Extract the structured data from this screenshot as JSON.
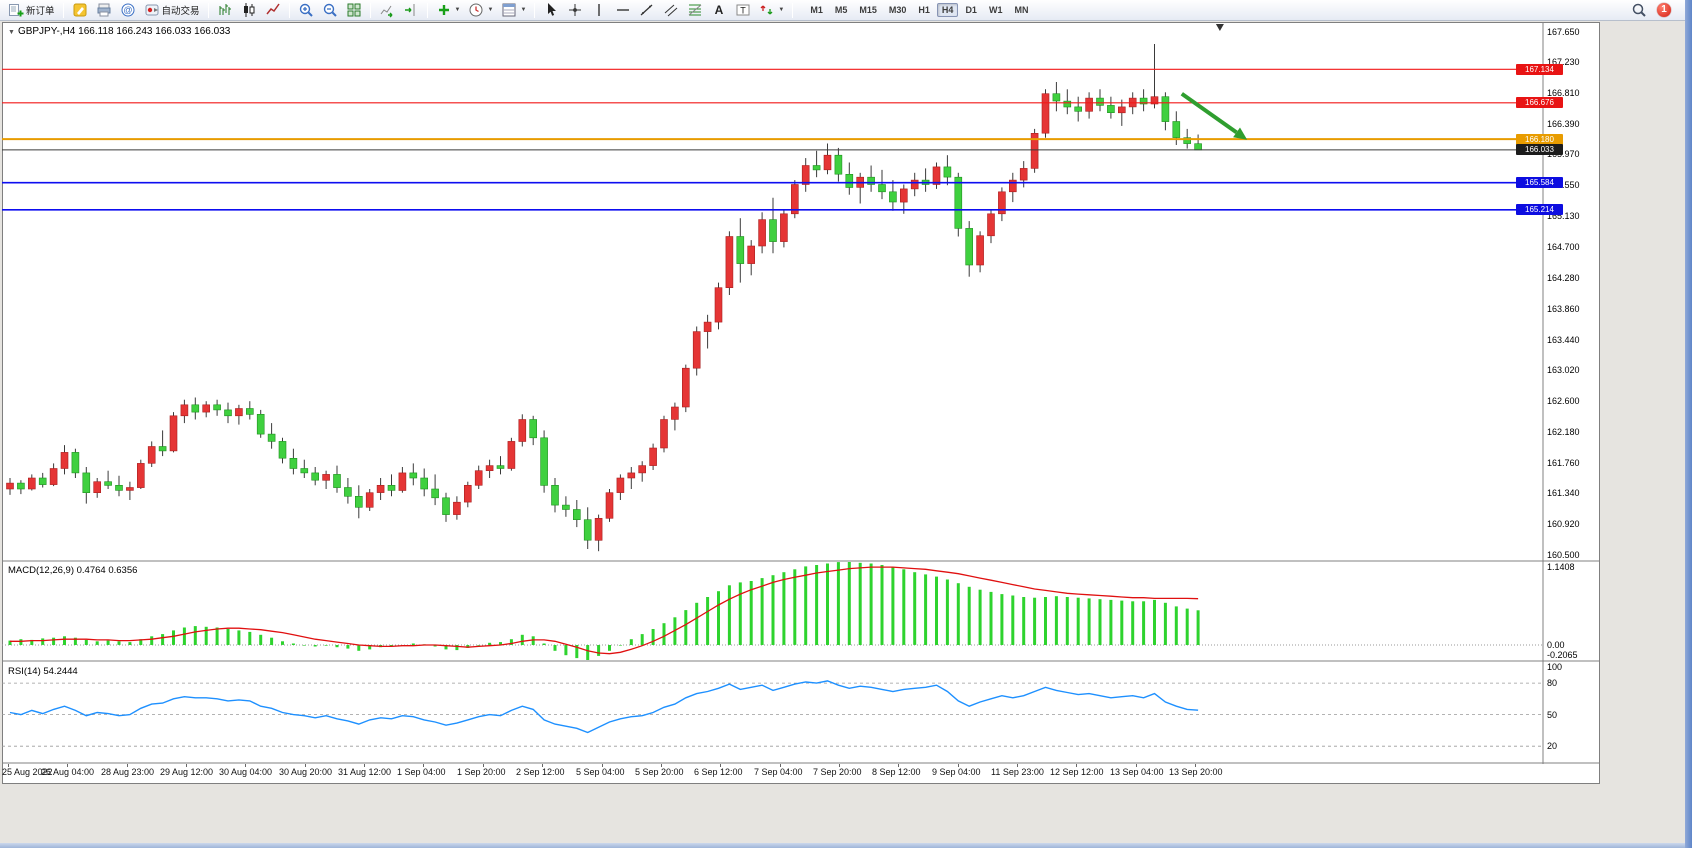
{
  "toolbar": {
    "items": [
      {
        "name": "new-order-button",
        "icon": "new-order",
        "label": "新订单"
      },
      {
        "sep": true
      },
      {
        "name": "metaeditor-button",
        "icon": "editor"
      },
      {
        "name": "print-button",
        "icon": "printer"
      },
      {
        "name": "mql-community-button",
        "icon": "at-circle"
      },
      {
        "name": "autotrading-button",
        "icon": "autotrade",
        "label": "自动交易"
      },
      {
        "sep": true
      },
      {
        "name": "bar-chart-button",
        "icon": "bars"
      },
      {
        "name": "candlestick-chart-button",
        "icon": "candles"
      },
      {
        "name": "line-chart-button",
        "icon": "line"
      },
      {
        "sep": true
      },
      {
        "name": "zoom-in-button",
        "icon": "zoom-in"
      },
      {
        "name": "zoom-out-button",
        "icon": "zoom-out"
      },
      {
        "name": "tile-windows-button",
        "icon": "tile"
      },
      {
        "sep": true
      },
      {
        "name": "auto-scroll-button",
        "icon": "autoscroll"
      },
      {
        "name": "chart-shift-button",
        "icon": "shift"
      },
      {
        "sep": true
      },
      {
        "name": "indicators-button",
        "icon": "plus-green",
        "caret": true
      },
      {
        "name": "periods-button",
        "icon": "clock",
        "caret": true
      },
      {
        "name": "templates-button",
        "icon": "template",
        "caret": true
      },
      {
        "sep": true
      },
      {
        "name": "cursor-button",
        "icon": "cursor"
      },
      {
        "name": "crosshair-button",
        "icon": "crosshair"
      },
      {
        "name": "vertical-line-button",
        "icon": "vline"
      },
      {
        "name": "horizontal-line-button",
        "icon": "hline"
      },
      {
        "name": "trendline-button",
        "icon": "trendline"
      },
      {
        "name": "channel-button",
        "icon": "channel"
      },
      {
        "name": "fibonacci-button",
        "icon": "fibo"
      },
      {
        "name": "text-button",
        "icon": "text-a"
      },
      {
        "name": "label-button",
        "icon": "text-t"
      },
      {
        "name": "arrows-button",
        "icon": "arrows",
        "caret": true
      },
      {
        "sep": true
      }
    ],
    "timeframes": [
      "M1",
      "M5",
      "M15",
      "M30",
      "H1",
      "H4",
      "D1",
      "W1",
      "MN"
    ],
    "active_timeframe": "H4",
    "badge_count": "1"
  },
  "chart": {
    "symbol_info": "GBPJPY-,H4  166.118 166.243 166.033 166.033",
    "macd_label": "MACD(12,26,9) 0.4764 0.6356",
    "rsi_label": "RSI(14) 54.2444"
  },
  "chart_data": {
    "type": "candlestick",
    "symbol": "GBPJPY-",
    "timeframe": "H4",
    "price_range": [
      160.43,
      167.78
    ],
    "price_ticks": [
      "167.650",
      "167.230",
      "166.810",
      "166.390",
      "165.970",
      "165.550",
      "165.130",
      "164.700",
      "164.280",
      "163.860",
      "163.440",
      "163.020",
      "162.600",
      "162.180",
      "161.760",
      "161.340",
      "160.920",
      "160.500"
    ],
    "time_labels": [
      "25 Aug 2022",
      "26 Aug 04:00",
      "28 Aug 23:00",
      "29 Aug 12:00",
      "30 Aug 04:00",
      "30 Aug 20:00",
      "31 Aug 12:00",
      "1 Sep 04:00",
      "1 Sep 20:00",
      "2 Sep 12:00",
      "5 Sep 04:00",
      "5 Sep 20:00",
      "6 Sep 12:00",
      "7 Sep 04:00",
      "7 Sep 20:00",
      "8 Sep 12:00",
      "9 Sep 04:00",
      "11 Sep 23:00",
      "12 Sep 12:00",
      "13 Sep 04:00",
      "13 Sep 20:00"
    ],
    "up_color": "#e53535",
    "down_color": "#3fd03f",
    "wick_color": "#3a3a3a",
    "candles": [
      [
        161.4,
        161.55,
        161.32,
        161.48
      ],
      [
        161.48,
        161.52,
        161.33,
        161.4
      ],
      [
        161.4,
        161.6,
        161.38,
        161.55
      ],
      [
        161.55,
        161.62,
        161.42,
        161.46
      ],
      [
        161.46,
        161.75,
        161.44,
        161.68
      ],
      [
        161.68,
        162.0,
        161.6,
        161.9
      ],
      [
        161.9,
        161.95,
        161.55,
        161.62
      ],
      [
        161.62,
        161.7,
        161.2,
        161.35
      ],
      [
        161.35,
        161.55,
        161.28,
        161.5
      ],
      [
        161.5,
        161.65,
        161.4,
        161.45
      ],
      [
        161.45,
        161.58,
        161.3,
        161.38
      ],
      [
        161.38,
        161.5,
        161.25,
        161.42
      ],
      [
        161.42,
        161.8,
        161.4,
        161.75
      ],
      [
        161.75,
        162.05,
        161.7,
        161.98
      ],
      [
        161.98,
        162.2,
        161.85,
        161.92
      ],
      [
        161.92,
        162.45,
        161.9,
        162.4
      ],
      [
        162.4,
        162.62,
        162.3,
        162.55
      ],
      [
        162.55,
        162.65,
        162.35,
        162.45
      ],
      [
        162.45,
        162.6,
        162.38,
        162.55
      ],
      [
        162.55,
        162.62,
        162.4,
        162.48
      ],
      [
        162.48,
        162.58,
        162.3,
        162.4
      ],
      [
        162.4,
        162.55,
        162.28,
        162.5
      ],
      [
        162.5,
        162.6,
        162.35,
        162.42
      ],
      [
        162.42,
        162.48,
        162.1,
        162.15
      ],
      [
        162.15,
        162.3,
        161.95,
        162.05
      ],
      [
        162.05,
        162.1,
        161.75,
        161.82
      ],
      [
        161.82,
        161.95,
        161.6,
        161.68
      ],
      [
        161.68,
        161.8,
        161.55,
        161.62
      ],
      [
        161.62,
        161.7,
        161.45,
        161.52
      ],
      [
        161.52,
        161.65,
        161.4,
        161.6
      ],
      [
        161.6,
        161.72,
        161.35,
        161.42
      ],
      [
        161.42,
        161.55,
        161.2,
        161.3
      ],
      [
        161.3,
        161.45,
        161.0,
        161.15
      ],
      [
        161.15,
        161.4,
        161.1,
        161.35
      ],
      [
        161.35,
        161.55,
        161.25,
        161.45
      ],
      [
        161.45,
        161.6,
        161.3,
        161.38
      ],
      [
        161.38,
        161.7,
        161.35,
        161.62
      ],
      [
        161.62,
        161.75,
        161.45,
        161.55
      ],
      [
        161.55,
        161.68,
        161.3,
        161.4
      ],
      [
        161.4,
        161.6,
        161.18,
        161.28
      ],
      [
        161.28,
        161.35,
        160.95,
        161.05
      ],
      [
        161.05,
        161.3,
        160.98,
        161.22
      ],
      [
        161.22,
        161.5,
        161.15,
        161.45
      ],
      [
        161.45,
        161.72,
        161.4,
        161.65
      ],
      [
        161.65,
        161.8,
        161.55,
        161.72
      ],
      [
        161.72,
        161.85,
        161.6,
        161.68
      ],
      [
        161.68,
        162.1,
        161.65,
        162.05
      ],
      [
        162.05,
        162.42,
        161.98,
        162.35
      ],
      [
        162.35,
        162.4,
        162.0,
        162.1
      ],
      [
        162.1,
        162.2,
        161.35,
        161.45
      ],
      [
        161.45,
        161.55,
        161.08,
        161.18
      ],
      [
        161.18,
        161.3,
        161.02,
        161.12
      ],
      [
        161.12,
        161.25,
        160.88,
        160.98
      ],
      [
        160.98,
        161.15,
        160.58,
        160.7
      ],
      [
        160.7,
        161.05,
        160.55,
        161.0
      ],
      [
        161.0,
        161.4,
        160.95,
        161.35
      ],
      [
        161.35,
        161.6,
        161.25,
        161.55
      ],
      [
        161.55,
        161.7,
        161.4,
        161.62
      ],
      [
        161.62,
        161.78,
        161.5,
        161.72
      ],
      [
        161.72,
        162.02,
        161.66,
        161.96
      ],
      [
        161.96,
        162.4,
        161.9,
        162.35
      ],
      [
        162.35,
        162.58,
        162.2,
        162.52
      ],
      [
        162.52,
        163.1,
        162.45,
        163.05
      ],
      [
        163.05,
        163.62,
        162.95,
        163.55
      ],
      [
        163.55,
        163.78,
        163.32,
        163.68
      ],
      [
        163.68,
        164.22,
        163.58,
        164.15
      ],
      [
        164.15,
        164.92,
        164.05,
        164.85
      ],
      [
        164.85,
        165.1,
        164.22,
        164.48
      ],
      [
        164.48,
        164.8,
        164.32,
        164.72
      ],
      [
        164.72,
        165.18,
        164.62,
        165.08
      ],
      [
        165.08,
        165.38,
        164.62,
        164.78
      ],
      [
        164.78,
        165.22,
        164.7,
        165.16
      ],
      [
        165.16,
        165.62,
        165.1,
        165.56
      ],
      [
        165.56,
        165.92,
        165.46,
        165.82
      ],
      [
        165.82,
        166.02,
        165.66,
        165.76
      ],
      [
        165.76,
        166.12,
        165.7,
        165.96
      ],
      [
        165.96,
        166.06,
        165.6,
        165.7
      ],
      [
        165.7,
        165.86,
        165.42,
        165.52
      ],
      [
        165.52,
        165.72,
        165.3,
        165.66
      ],
      [
        165.66,
        165.82,
        165.46,
        165.56
      ],
      [
        165.56,
        165.76,
        165.36,
        165.46
      ],
      [
        165.46,
        165.62,
        165.2,
        165.32
      ],
      [
        165.32,
        165.56,
        165.16,
        165.5
      ],
      [
        165.5,
        165.72,
        165.4,
        165.62
      ],
      [
        165.62,
        165.78,
        165.46,
        165.56
      ],
      [
        165.56,
        165.86,
        165.5,
        165.8
      ],
      [
        165.8,
        165.96,
        165.55,
        165.66
      ],
      [
        165.66,
        165.72,
        164.85,
        164.96
      ],
      [
        164.96,
        165.06,
        164.3,
        164.46
      ],
      [
        164.46,
        164.92,
        164.36,
        164.86
      ],
      [
        164.86,
        165.22,
        164.76,
        165.16
      ],
      [
        165.16,
        165.52,
        165.06,
        165.46
      ],
      [
        165.46,
        165.72,
        165.32,
        165.62
      ],
      [
        165.62,
        165.88,
        165.52,
        165.78
      ],
      [
        165.78,
        166.32,
        165.72,
        166.26
      ],
      [
        166.26,
        166.86,
        166.2,
        166.8
      ],
      [
        166.8,
        166.96,
        166.56,
        166.7
      ],
      [
        166.7,
        166.86,
        166.52,
        166.62
      ],
      [
        166.62,
        166.76,
        166.42,
        166.56
      ],
      [
        166.56,
        166.82,
        166.46,
        166.74
      ],
      [
        166.74,
        166.86,
        166.56,
        166.64
      ],
      [
        166.64,
        166.76,
        166.46,
        166.54
      ],
      [
        166.54,
        166.72,
        166.36,
        166.62
      ],
      [
        166.62,
        166.82,
        166.52,
        166.74
      ],
      [
        166.74,
        166.86,
        166.56,
        166.66
      ],
      [
        166.66,
        167.48,
        166.6,
        166.76
      ],
      [
        166.76,
        166.82,
        166.3,
        166.42
      ],
      [
        166.42,
        166.56,
        166.1,
        166.2
      ],
      [
        166.2,
        166.32,
        166.05,
        166.12
      ],
      [
        166.118,
        166.243,
        166.033,
        166.033
      ]
    ],
    "hlines": [
      {
        "price": 167.134,
        "label": "167.134",
        "color": "#f21818",
        "width": 1.2,
        "tag": "#e81414"
      },
      {
        "price": 166.676,
        "label": "166.676",
        "color": "#f21818",
        "width": 1.2,
        "tag": "#e81414"
      },
      {
        "price": 166.18,
        "label": "166.180",
        "color": "#e89c00",
        "width": 2,
        "tag": "#e89c00"
      },
      {
        "price": 166.033,
        "label": "166.033",
        "color": "#3a3a3a",
        "width": 1,
        "tag": "#1c1c1c"
      },
      {
        "price": 165.584,
        "label": "165.584",
        "color": "#0d0df0",
        "width": 1.6,
        "tag": "#0d0de0"
      },
      {
        "price": 165.214,
        "label": "165.214",
        "color": "#0d0df0",
        "width": 1.6,
        "tag": "#0d0de0"
      }
    ],
    "arrow": {
      "from_bar": 107.5,
      "from_price": 166.8,
      "to_bar": 113.5,
      "to_price": 166.17,
      "color": "#2f9e2f"
    },
    "shift_marker_bar": 111,
    "macd": {
      "range": [
        -0.2065,
        1.1408
      ],
      "ticks": [
        {
          "v": 1.1408,
          "t": "1.1408"
        },
        {
          "v": 0,
          "t": "0.00"
        },
        {
          "v": -0.2065,
          "t": "-0.2065"
        }
      ],
      "hist_color": "#2ed32e",
      "signal_color": "#e01010",
      "hist": [
        0.06,
        0.08,
        0.07,
        0.09,
        0.1,
        0.12,
        0.1,
        0.07,
        0.05,
        0.06,
        0.05,
        0.04,
        0.08,
        0.12,
        0.15,
        0.2,
        0.24,
        0.26,
        0.25,
        0.24,
        0.22,
        0.2,
        0.18,
        0.14,
        0.1,
        0.05,
        0.02,
        0.0,
        -0.02,
        -0.01,
        -0.03,
        -0.05,
        -0.08,
        -0.06,
        -0.03,
        -0.02,
        0.0,
        0.02,
        0.01,
        -0.02,
        -0.06,
        -0.07,
        -0.04,
        0.0,
        0.03,
        0.04,
        0.08,
        0.14,
        0.12,
        0.02,
        -0.08,
        -0.14,
        -0.18,
        -0.2065,
        -0.15,
        -0.08,
        0.0,
        0.08,
        0.15,
        0.22,
        0.3,
        0.38,
        0.48,
        0.58,
        0.66,
        0.74,
        0.82,
        0.86,
        0.88,
        0.92,
        0.96,
        1.0,
        1.04,
        1.08,
        1.1,
        1.12,
        1.14,
        1.1408,
        1.13,
        1.12,
        1.1,
        1.07,
        1.04,
        1.0,
        0.97,
        0.94,
        0.9,
        0.85,
        0.8,
        0.76,
        0.73,
        0.7,
        0.68,
        0.66,
        0.65,
        0.66,
        0.67,
        0.66,
        0.65,
        0.64,
        0.63,
        0.62,
        0.61,
        0.6,
        0.6,
        0.62,
        0.58,
        0.53,
        0.5,
        0.4764
      ],
      "signal": [
        0.05,
        0.05,
        0.06,
        0.06,
        0.07,
        0.08,
        0.08,
        0.08,
        0.07,
        0.07,
        0.06,
        0.06,
        0.07,
        0.08,
        0.1,
        0.12,
        0.15,
        0.18,
        0.2,
        0.22,
        0.23,
        0.23,
        0.22,
        0.21,
        0.19,
        0.17,
        0.14,
        0.11,
        0.08,
        0.06,
        0.04,
        0.02,
        0.0,
        -0.01,
        -0.02,
        -0.02,
        -0.01,
        -0.01,
        0.0,
        0.0,
        -0.01,
        -0.02,
        -0.03,
        -0.02,
        -0.01,
        0.0,
        0.02,
        0.05,
        0.07,
        0.07,
        0.05,
        0.01,
        -0.03,
        -0.08,
        -0.11,
        -0.12,
        -0.1,
        -0.06,
        -0.01,
        0.05,
        0.12,
        0.2,
        0.28,
        0.37,
        0.46,
        0.55,
        0.63,
        0.7,
        0.76,
        0.81,
        0.86,
        0.9,
        0.93,
        0.96,
        0.99,
        1.01,
        1.03,
        1.05,
        1.06,
        1.07,
        1.07,
        1.07,
        1.06,
        1.05,
        1.04,
        1.02,
        1.0,
        0.98,
        0.95,
        0.92,
        0.89,
        0.86,
        0.83,
        0.8,
        0.77,
        0.75,
        0.73,
        0.71,
        0.7,
        0.69,
        0.68,
        0.67,
        0.66,
        0.65,
        0.65,
        0.64,
        0.64,
        0.64,
        0.64,
        0.6356
      ]
    },
    "rsi": {
      "range": [
        5,
        100
      ],
      "ticks": [
        {
          "v": 100,
          "t": "100"
        },
        {
          "v": 80,
          "t": "80"
        },
        {
          "v": 50,
          "t": "50"
        },
        {
          "v": 20,
          "t": "20"
        }
      ],
      "levels": [
        80,
        50,
        20
      ],
      "color": "#1e90ff",
      "values": [
        52,
        50,
        54,
        51,
        55,
        58,
        54,
        49,
        52,
        51,
        49,
        50,
        56,
        60,
        61,
        65,
        67,
        66,
        66,
        65,
        63,
        64,
        63,
        58,
        56,
        52,
        50,
        49,
        47,
        49,
        46,
        44,
        41,
        45,
        47,
        46,
        49,
        48,
        45,
        43,
        40,
        42,
        45,
        48,
        50,
        49,
        54,
        58,
        55,
        45,
        41,
        39,
        37,
        33,
        38,
        43,
        46,
        48,
        49,
        52,
        57,
        60,
        66,
        70,
        72,
        75,
        79,
        74,
        76,
        78,
        73,
        76,
        79,
        81,
        80,
        82,
        78,
        75,
        77,
        76,
        74,
        72,
        74,
        75,
        76,
        78,
        72,
        63,
        58,
        62,
        65,
        68,
        66,
        68,
        72,
        76,
        73,
        71,
        69,
        70,
        68,
        66,
        67,
        68,
        66,
        70,
        62,
        58,
        55,
        54.24
      ]
    }
  }
}
